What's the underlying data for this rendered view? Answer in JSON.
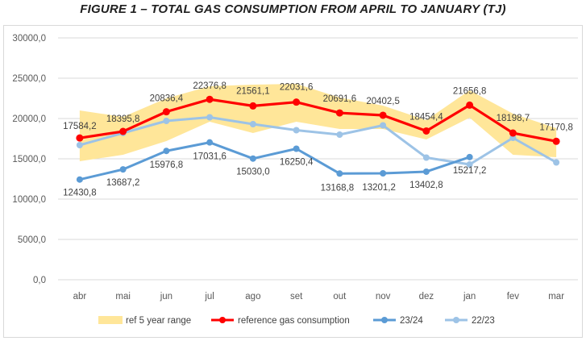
{
  "title": "FIGURE 1 – TOTAL GAS CONSUMPTION FROM APRIL TO JANUARY (TJ)",
  "chart_data": {
    "type": "line",
    "title": "FIGURE 1 – TOTAL GAS CONSUMPTION FROM APRIL TO JANUARY (TJ)",
    "xlabel": "",
    "ylabel": "",
    "ylim": [
      0,
      30000
    ],
    "yticks": [
      0,
      5000,
      10000,
      15000,
      20000,
      25000,
      30000
    ],
    "ytick_labels": [
      "0,0",
      "5000,0",
      "10000,0",
      "15000,0",
      "20000,0",
      "25000,0",
      "30000,0"
    ],
    "categories": [
      "abr",
      "mai",
      "jun",
      "jul",
      "ago",
      "set",
      "out",
      "nov",
      "dez",
      "jan",
      "fev",
      "mar"
    ],
    "grid": true,
    "legend_position": "bottom",
    "range": {
      "name": "ref 5 year range",
      "color": "#FFE699",
      "low": [
        14700,
        15500,
        17200,
        19600,
        18200,
        19600,
        18700,
        18700,
        17400,
        20100,
        15500,
        15200
      ],
      "high": [
        21000,
        20200,
        22500,
        24000,
        24200,
        24300,
        22600,
        21600,
        19800,
        23500,
        20600,
        18800
      ]
    },
    "series": [
      {
        "name": "reference gas consumption",
        "color": "#FF0000",
        "values": [
          17584.2,
          18395.8,
          20836.4,
          22376.8,
          21561.1,
          22031.6,
          20691.6,
          20402.5,
          18454.4,
          21656.8,
          18198.7,
          17170.8
        ],
        "labels": [
          "17584,2",
          "18395,8",
          "20836,4",
          "22376,8",
          "21561,1",
          "22031,6",
          "20691,6",
          "20402,5",
          "18454,4",
          "21656,8",
          "18198,7",
          "17170,8"
        ]
      },
      {
        "name": "23/24",
        "color": "#5B9BD5",
        "values": [
          12430.8,
          13687.2,
          15976.8,
          17031.6,
          15030.0,
          16250.4,
          13168.8,
          13201.2,
          13402.8,
          15217.2,
          null,
          null
        ],
        "labels": [
          "12430,8",
          "13687,2",
          "15976,8",
          "17031,6",
          "15030,0",
          "16250,4",
          "13168,8",
          "13201,2",
          "13402,8",
          "15217,2",
          null,
          null
        ]
      },
      {
        "name": "22/23",
        "color": "#9DC3E6",
        "values": [
          16700,
          18200,
          19700,
          20150,
          19300,
          18550,
          18000,
          19150,
          15150,
          14300,
          17600,
          14550
        ]
      }
    ]
  }
}
